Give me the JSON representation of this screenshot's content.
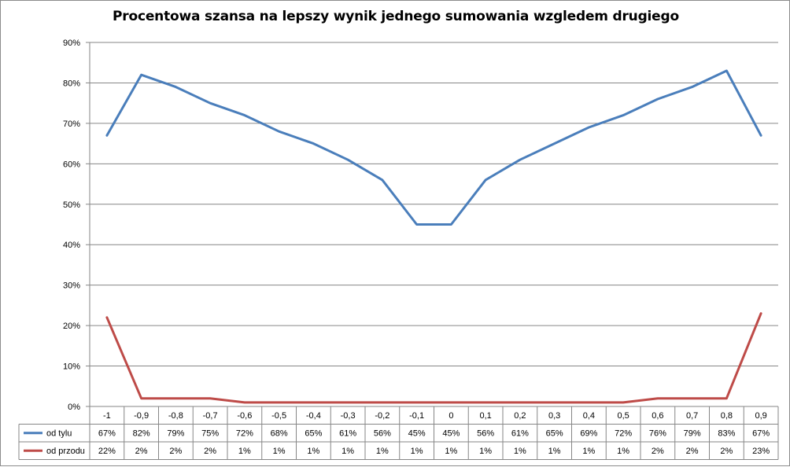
{
  "chart_data": {
    "type": "line",
    "title": "Procentowa szansa na lepszy wynik jednego sumowania wzgledem  drugiego",
    "categories": [
      "-1",
      "-0,9",
      "-0,8",
      "-0,7",
      "-0,6",
      "-0,5",
      "-0,4",
      "-0,3",
      "-0,2",
      "-0,1",
      "0",
      "0,1",
      "0,2",
      "0,3",
      "0,4",
      "0,5",
      "0,6",
      "0,7",
      "0,8",
      "0,9"
    ],
    "y_ticks": [
      "0%",
      "10%",
      "20%",
      "30%",
      "40%",
      "50%",
      "60%",
      "70%",
      "80%",
      "90%"
    ],
    "ylim": [
      0,
      90
    ],
    "grid": true,
    "legend": "data table below plot",
    "series": [
      {
        "name": "od tylu",
        "color": "#4a7ebb",
        "values": [
          67,
          82,
          79,
          75,
          72,
          68,
          65,
          61,
          56,
          45,
          45,
          56,
          61,
          65,
          69,
          72,
          76,
          79,
          83,
          67
        ],
        "labels": [
          "67%",
          "82%",
          "79%",
          "75%",
          "72%",
          "68%",
          "65%",
          "61%",
          "56%",
          "45%",
          "45%",
          "56%",
          "61%",
          "65%",
          "69%",
          "72%",
          "76%",
          "79%",
          "83%",
          "67%"
        ]
      },
      {
        "name": "od przodu",
        "color": "#be4b48",
        "values": [
          22,
          2,
          2,
          2,
          1,
          1,
          1,
          1,
          1,
          1,
          1,
          1,
          1,
          1,
          1,
          1,
          2,
          2,
          2,
          23
        ],
        "labels": [
          "22%",
          "2%",
          "2%",
          "2%",
          "1%",
          "1%",
          "1%",
          "1%",
          "1%",
          "1%",
          "1%",
          "1%",
          "1%",
          "1%",
          "1%",
          "1%",
          "2%",
          "2%",
          "2%",
          "23%"
        ]
      }
    ]
  }
}
